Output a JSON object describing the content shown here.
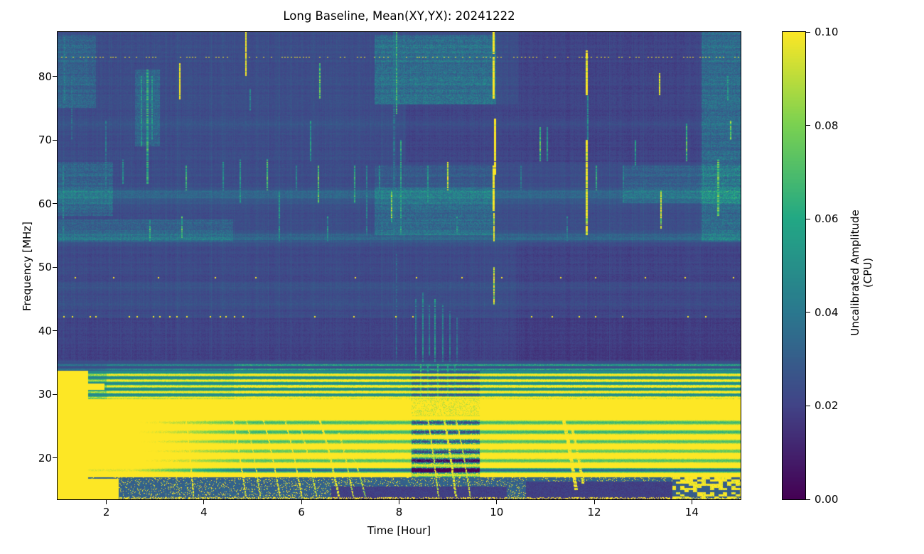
{
  "figure": {
    "title": "Long Baseline, Mean(XY,YX): 20241222",
    "xlabel": "Time [Hour]",
    "ylabel": "Frequency [MHz]",
    "colorbar_label": "Uncalibrated Amplitude (CPU)"
  },
  "chart_data": {
    "type": "heatmap",
    "title": "Long Baseline, Mean(XY,YX): 20241222",
    "xlabel": "Time [Hour]",
    "ylabel": "Frequency [MHz]",
    "colorbar_label": "Uncalibrated Amplitude (CPU)",
    "x_range": [
      1,
      15
    ],
    "y_range": [
      13.5,
      87
    ],
    "x_ticks": {
      "values": [
        2,
        4,
        6,
        8,
        10,
        12,
        14
      ],
      "labels": [
        "2",
        "4",
        "6",
        "8",
        "10",
        "12",
        "14"
      ]
    },
    "y_ticks": {
      "values": [
        20,
        30,
        40,
        50,
        60,
        70,
        80
      ],
      "labels": [
        "20",
        "30",
        "40",
        "50",
        "60",
        "70",
        "80"
      ]
    },
    "colorbar_ticks": {
      "values": [
        0,
        0.02,
        0.04,
        0.06,
        0.08,
        0.1
      ],
      "labels": [
        "0.00",
        "0.02",
        "0.04",
        "0.06",
        "0.08",
        "0.10"
      ]
    },
    "clim": [
      0,
      0.1
    ],
    "colormap": "viridis",
    "colormap_stops": [
      [
        0,
        "#440154"
      ],
      [
        0.2,
        "#414487"
      ],
      [
        0.4,
        "#2a788e"
      ],
      [
        0.6,
        "#22a884"
      ],
      [
        0.8,
        "#7ad151"
      ],
      [
        1,
        "#fde725"
      ]
    ],
    "grid": false,
    "legend": "none",
    "features": {
      "base_level": 0.017,
      "noise": {
        "row": 0.005,
        "col": 0.003,
        "pixel": 0.005,
        "comb": 0.003
      },
      "dark_zones": [
        [
          35.3,
          42.0,
          -0.0035
        ],
        [
          42.0,
          54.0,
          -0.001
        ]
      ],
      "faint_rows": [
        [
          61.3,
          1.2,
          0.006
        ],
        [
          54.6,
          1.0,
          0.006
        ],
        [
          46.8,
          0.8,
          0.004
        ],
        [
          44.2,
          0.6,
          0.003
        ],
        [
          72.5,
          0.8,
          0.003
        ]
      ],
      "bands": {
        "transition": [
          33.8,
          35.2
        ],
        "stripe": [
          29.3,
          33.8
        ],
        "solid": [
          26.7,
          29.3
        ],
        "yellow": [
          17.0,
          26.7
        ],
        "floor": [
          13.5,
          17.0
        ],
        "left_solid_t": 1.62,
        "protrusion": [
          1.95,
          30.8,
          31.8
        ],
        "dark_col": [
          8.25,
          9.65
        ],
        "navy_patches": [
          [
            6.6,
            10.2,
            13.5,
            15.6
          ],
          [
            10.6,
            13.6,
            13.5,
            16.4
          ]
        ],
        "bl_patch": [
          1.0,
          2.25,
          13.5,
          16.8
        ],
        "br_patch": [
          13.6,
          15.0,
          13.5,
          17.5
        ]
      },
      "blocks": [
        [
          1.0,
          2.15,
          58,
          66.5,
          0.013
        ],
        [
          1.0,
          1.8,
          75,
          86.5,
          0.012
        ],
        [
          2.6,
          3.1,
          69,
          81,
          0.013
        ],
        [
          7.5,
          10.0,
          75.5,
          86.5,
          0.018
        ],
        [
          7.5,
          9.97,
          55,
          62.5,
          0.015
        ],
        [
          7.5,
          9.97,
          62.5,
          66,
          0.007
        ],
        [
          1.0,
          4.6,
          54,
          57.5,
          0.01
        ],
        [
          12.6,
          15,
          60,
          66,
          0.01
        ],
        [
          14.2,
          15,
          54,
          87,
          0.016
        ],
        [
          1.0,
          15,
          54.2,
          55.2,
          0.006
        ],
        [
          1.0,
          15,
          60.8,
          62,
          0.006
        ],
        [
          10.45,
          14.2,
          66.5,
          87,
          -0.0035
        ],
        [
          8.15,
          10.45,
          66.5,
          75.5,
          -0.003
        ],
        [
          10.4,
          15,
          35,
          54,
          -0.0025
        ]
      ],
      "rfi_lines": [
        [
          1.12,
          54,
          66,
          0.055,
          2
        ],
        [
          1.15,
          76,
          86,
          0.05,
          2
        ],
        [
          1.3,
          70,
          80,
          0.045,
          2
        ],
        [
          2.0,
          60,
          73,
          0.05,
          2
        ],
        [
          2.35,
          63,
          67,
          0.06,
          2
        ],
        [
          2.72,
          69,
          80,
          0.065,
          2
        ],
        [
          2.85,
          63,
          81,
          0.075,
          3
        ],
        [
          2.95,
          70,
          80,
          0.065,
          2
        ],
        [
          2.9,
          54,
          57.5,
          0.08,
          2
        ],
        [
          3.52,
          76.3,
          82,
          0.15,
          2
        ],
        [
          3.55,
          54.5,
          58,
          0.085,
          2
        ],
        [
          3.65,
          62,
          66,
          0.08,
          2
        ],
        [
          4.4,
          62,
          66.5,
          0.06,
          2
        ],
        [
          4.75,
          60,
          67,
          0.065,
          2
        ],
        [
          4.87,
          80,
          87,
          0.15,
          2
        ],
        [
          4.95,
          74.5,
          78,
          0.055,
          2
        ],
        [
          5.3,
          62,
          67,
          0.085,
          2
        ],
        [
          5.55,
          54,
          62,
          0.065,
          2
        ],
        [
          5.9,
          62,
          66,
          0.055,
          2
        ],
        [
          6.2,
          66.5,
          73,
          0.065,
          2
        ],
        [
          6.39,
          76.4,
          82,
          0.09,
          2
        ],
        [
          6.35,
          60,
          66,
          0.09,
          2
        ],
        [
          6.55,
          54,
          58,
          0.065,
          2
        ],
        [
          7.1,
          60,
          66,
          0.075,
          2
        ],
        [
          7.35,
          55,
          66,
          0.055,
          2
        ],
        [
          7.6,
          62,
          66,
          0.06,
          2
        ],
        [
          7.85,
          57,
          62,
          0.1,
          2
        ],
        [
          7.9,
          55,
          87,
          0.045,
          3
        ],
        [
          7.95,
          74,
          87,
          0.08,
          2
        ],
        [
          8.05,
          55,
          70,
          0.07,
          2
        ],
        [
          8.6,
          60,
          66,
          0.065,
          2
        ],
        [
          9.0,
          62,
          66.5,
          0.12,
          2
        ],
        [
          9.2,
          55,
          58,
          0.065,
          2
        ],
        [
          9.95,
          83.5,
          87,
          0.16,
          3
        ],
        [
          9.95,
          76.5,
          83,
          0.16,
          3
        ],
        [
          9.97,
          64.5,
          73.3,
          0.16,
          3
        ],
        [
          9.95,
          58.8,
          66,
          0.16,
          3
        ],
        [
          9.95,
          54,
          58.5,
          0.14,
          2
        ],
        [
          9.95,
          44,
          50,
          0.12,
          2
        ],
        [
          10.5,
          62,
          66,
          0.05,
          2
        ],
        [
          10.9,
          66.5,
          72,
          0.085,
          2
        ],
        [
          11.05,
          66.5,
          72,
          0.065,
          2
        ],
        [
          11.45,
          54,
          58,
          0.055,
          2
        ],
        [
          11.85,
          77,
          84,
          0.15,
          3
        ],
        [
          11.85,
          55,
          70,
          0.14,
          3
        ],
        [
          11.87,
          70,
          77,
          0.06,
          2
        ],
        [
          12.05,
          62,
          66,
          0.075,
          2
        ],
        [
          12.6,
          60,
          66,
          0.055,
          2
        ],
        [
          12.85,
          66,
          70,
          0.065,
          2
        ],
        [
          13.35,
          77,
          80.5,
          0.13,
          2
        ],
        [
          13.38,
          56,
          62,
          0.12,
          2
        ],
        [
          13.9,
          66.5,
          72.5,
          0.085,
          2
        ],
        [
          14.25,
          62,
          66,
          0.055,
          2
        ],
        [
          14.55,
          58,
          67,
          0.09,
          3
        ],
        [
          14.8,
          70,
          73,
          0.1,
          2
        ],
        [
          14.75,
          76,
          80,
          0.065,
          2
        ],
        [
          8.35,
          35,
          45,
          0.05,
          2
        ],
        [
          8.5,
          35,
          46,
          0.06,
          2
        ],
        [
          8.62,
          36,
          44,
          0.05,
          2
        ],
        [
          8.75,
          35,
          45,
          0.065,
          2
        ],
        [
          8.9,
          35,
          44,
          0.055,
          2
        ],
        [
          9.05,
          35,
          43,
          0.05,
          2
        ],
        [
          9.2,
          35,
          42,
          0.045,
          2
        ],
        [
          8.45,
          28.5,
          34.8,
          0.08,
          2
        ],
        [
          8.6,
          28.5,
          34.8,
          0.07,
          2
        ],
        [
          8.8,
          28.5,
          34.8,
          0.08,
          2
        ],
        [
          9.0,
          28.5,
          34.8,
          0.07,
          2
        ],
        [
          9.15,
          28.5,
          34.8,
          0.06,
          2
        ],
        [
          7.95,
          35,
          52,
          0.04,
          2
        ]
      ],
      "chirps": [
        [
          3.6,
          27,
          14,
          0.18,
          2,
          0.13
        ],
        [
          4.55,
          27,
          14,
          0.3,
          2,
          0.13
        ],
        [
          4.85,
          26,
          14,
          0.3,
          2,
          0.12
        ],
        [
          5.2,
          26,
          14,
          0.35,
          2,
          0.13
        ],
        [
          5.6,
          27,
          14,
          0.4,
          2,
          0.13
        ],
        [
          5.95,
          25,
          14,
          0.35,
          2,
          0.12
        ],
        [
          6.3,
          27,
          14,
          0.45,
          3,
          0.13
        ],
        [
          6.75,
          24,
          14,
          0.3,
          2,
          0.12
        ],
        [
          7.05,
          20,
          14,
          0.25,
          2,
          0.11
        ],
        [
          8.55,
          27,
          14,
          0.25,
          2,
          0.12
        ],
        [
          8.85,
          28,
          14,
          0.3,
          3,
          0.13
        ],
        [
          9.15,
          26,
          14,
          0.3,
          2,
          0.12
        ],
        [
          11.3,
          27,
          15,
          0.3,
          5,
          0.14
        ],
        [
          11.5,
          25,
          16,
          0.25,
          4,
          0.13
        ]
      ],
      "dotted_rows": [
        {
          "f": 83.0,
          "t0": 1.0,
          "t1": 15.0,
          "spacing": 0.07,
          "prob": 0.62,
          "w": 2,
          "h": 1,
          "v": 0.15
        },
        {
          "f": 48.4,
          "t0": 1.35,
          "t1": 15.0,
          "spacing": 1.0,
          "prob": 0.95,
          "w": 2,
          "h": 2,
          "v": 0.16
        },
        {
          "f": 42.3,
          "t0": 1.0,
          "t1": 4.8,
          "spacing": 0.16,
          "prob": 0.75,
          "w": 2,
          "h": 2,
          "v": 0.16
        },
        {
          "f": 42.3,
          "t0": 4.8,
          "t1": 15.0,
          "spacing": 0.45,
          "prob": 0.5,
          "w": 2,
          "h": 2,
          "v": 0.16
        }
      ]
    }
  }
}
